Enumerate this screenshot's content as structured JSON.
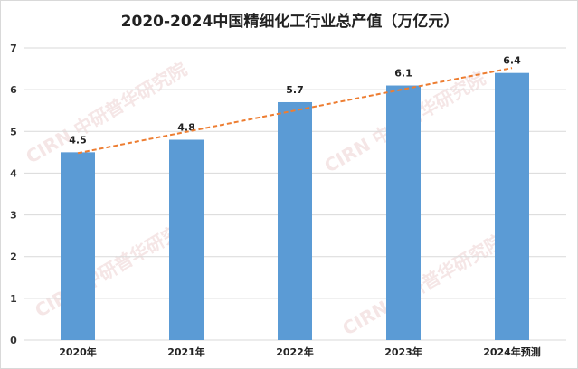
{
  "chart_data": {
    "type": "bar",
    "title": "2020-2024中国精细化工行业总产值（万亿元）",
    "categories": [
      "2020年",
      "2021年",
      "2022年",
      "2023年",
      "2024年预测"
    ],
    "values": [
      4.5,
      4.8,
      5.7,
      6.1,
      6.4
    ],
    "data_labels": [
      "4.5",
      "4.8",
      "5.7",
      "6.1",
      "6.4"
    ],
    "xlabel": "",
    "ylabel": "",
    "ylim": [
      0,
      7
    ],
    "yticks": [
      "0",
      "1",
      "2",
      "3",
      "4",
      "5",
      "6",
      "7"
    ],
    "grid": true,
    "trendline": {
      "type": "linear",
      "style": "dashed",
      "color": "#ed7d31"
    },
    "bar_color": "#5b9bd5"
  },
  "watermark": {
    "text": "CIRN 中研普华研究院 www.ChinaIRN.COM"
  }
}
